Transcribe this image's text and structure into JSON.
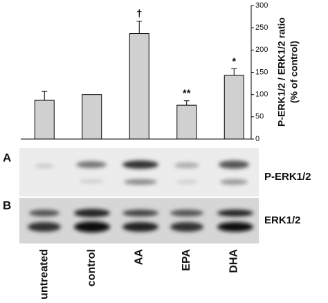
{
  "chart_data": {
    "type": "bar",
    "categories": [
      "untreated",
      "control",
      "AA",
      "EPA",
      "DHA"
    ],
    "values": [
      87,
      100,
      237,
      76,
      143
    ],
    "errors": [
      20,
      null,
      28,
      10,
      15
    ],
    "annotations": [
      null,
      null,
      "†",
      "**",
      "*"
    ],
    "color": "#d0d0d0",
    "ylabel": [
      "P-ERK1/2 / ERK1/2 ratio",
      "(% of control)"
    ],
    "ylim": [
      0,
      300
    ],
    "yticks": [
      0,
      50,
      100,
      150,
      200,
      250,
      300
    ],
    "panels": [
      "A",
      "B"
    ],
    "blot_labels": [
      "P-ERK1/2",
      "ERK1/2"
    ]
  }
}
